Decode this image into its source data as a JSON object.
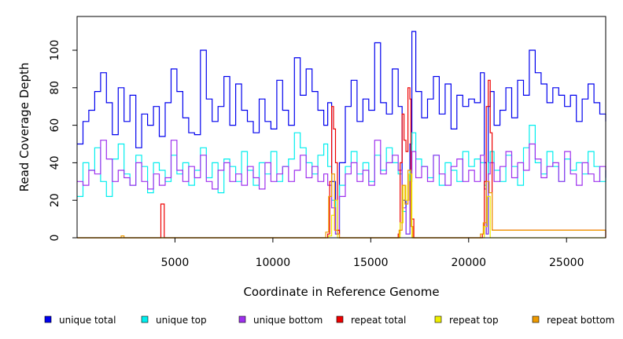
{
  "chart_data": {
    "type": "line",
    "title": "",
    "xlabel": "Coordinate in Reference Genome",
    "ylabel": "Read Coverage Depth",
    "xlim": [
      0,
      27000
    ],
    "ylim": [
      0,
      118
    ],
    "xticks": [
      5000,
      10000,
      15000,
      20000,
      25000
    ],
    "xtick_labels": [
      "5000",
      "10000",
      "15000",
      "20000",
      "25000"
    ],
    "yticks": [
      0,
      20,
      40,
      60,
      80,
      100
    ],
    "ytick_labels": [
      "0",
      "20",
      "40",
      "60",
      "80",
      "100"
    ],
    "grid": false,
    "legend_position": "bottom",
    "series": [
      {
        "name": "unique total",
        "color": "#0000ee",
        "x": [
          0,
          300,
          600,
          900,
          1200,
          1500,
          1800,
          2100,
          2400,
          2700,
          3000,
          3300,
          3600,
          3900,
          4200,
          4500,
          4800,
          5100,
          5400,
          5700,
          6000,
          6300,
          6600,
          6900,
          7200,
          7500,
          7800,
          8100,
          8400,
          8700,
          9000,
          9300,
          9600,
          9900,
          10200,
          10500,
          10800,
          11100,
          11400,
          11700,
          12000,
          12300,
          12600,
          12800,
          13000,
          13200,
          13400,
          13700,
          14000,
          14300,
          14600,
          14900,
          15200,
          15500,
          15800,
          16100,
          16400,
          16600,
          16800,
          17000,
          17100,
          17300,
          17600,
          17900,
          18200,
          18500,
          18800,
          19100,
          19400,
          19700,
          20000,
          20300,
          20600,
          20800,
          20900,
          21000,
          21100,
          21300,
          21600,
          21900,
          22200,
          22500,
          22800,
          23100,
          23400,
          23700,
          24000,
          24300,
          24600,
          24900,
          25200,
          25500,
          25800,
          26100,
          26400,
          26700,
          27000
        ],
        "values": [
          50,
          62,
          68,
          78,
          88,
          72,
          55,
          80,
          62,
          76,
          48,
          66,
          60,
          70,
          54,
          72,
          90,
          78,
          64,
          56,
          55,
          100,
          74,
          62,
          70,
          86,
          60,
          82,
          68,
          62,
          56,
          74,
          62,
          58,
          84,
          68,
          60,
          96,
          76,
          90,
          78,
          68,
          60,
          72,
          30,
          2,
          40,
          70,
          84,
          62,
          74,
          68,
          104,
          72,
          66,
          90,
          70,
          20,
          2,
          50,
          110,
          78,
          64,
          74,
          86,
          66,
          82,
          58,
          76,
          70,
          74,
          72,
          88,
          40,
          2,
          70,
          78,
          60,
          68,
          80,
          64,
          84,
          76,
          100,
          88,
          82,
          72,
          80,
          76,
          70,
          76,
          62,
          74,
          82,
          72,
          66,
          62
        ]
      },
      {
        "name": "unique top",
        "color": "#00eeee",
        "x": [
          0,
          300,
          600,
          900,
          1200,
          1500,
          1800,
          2100,
          2400,
          2700,
          3000,
          3300,
          3600,
          3900,
          4200,
          4500,
          4800,
          5100,
          5400,
          5700,
          6000,
          6300,
          6600,
          6900,
          7200,
          7500,
          7800,
          8100,
          8400,
          8700,
          9000,
          9300,
          9600,
          9900,
          10200,
          10500,
          10800,
          11100,
          11400,
          11700,
          12000,
          12300,
          12600,
          12800,
          13000,
          13200,
          13400,
          13700,
          14000,
          14300,
          14600,
          14900,
          15200,
          15500,
          15800,
          16100,
          16400,
          16600,
          16800,
          17000,
          17100,
          17300,
          17600,
          17900,
          18200,
          18500,
          18800,
          19100,
          19400,
          19700,
          20000,
          20300,
          20600,
          20800,
          20900,
          21000,
          21100,
          21300,
          21600,
          21900,
          22200,
          22500,
          22800,
          23100,
          23400,
          23700,
          24000,
          24300,
          24600,
          24900,
          25200,
          25500,
          25800,
          26100,
          26400,
          26700,
          27000
        ],
        "values": [
          22,
          40,
          36,
          48,
          30,
          22,
          42,
          50,
          34,
          28,
          44,
          38,
          24,
          40,
          36,
          30,
          44,
          34,
          40,
          28,
          36,
          48,
          32,
          40,
          24,
          42,
          38,
          30,
          46,
          36,
          28,
          40,
          34,
          46,
          30,
          38,
          42,
          56,
          48,
          40,
          34,
          44,
          50,
          38,
          20,
          2,
          28,
          38,
          46,
          34,
          40,
          30,
          44,
          36,
          48,
          40,
          34,
          14,
          2,
          36,
          56,
          42,
          38,
          32,
          44,
          28,
          40,
          36,
          30,
          46,
          38,
          42,
          40,
          28,
          2,
          40,
          46,
          36,
          30,
          44,
          38,
          28,
          48,
          60,
          40,
          34,
          46,
          38,
          30,
          42,
          36,
          40,
          34,
          46,
          38,
          30,
          36
        ]
      },
      {
        "name": "unique bottom",
        "color": "#9f30ee",
        "x": [
          0,
          300,
          600,
          900,
          1200,
          1500,
          1800,
          2100,
          2400,
          2700,
          3000,
          3300,
          3600,
          3900,
          4200,
          4500,
          4800,
          5100,
          5400,
          5700,
          6000,
          6300,
          6600,
          6900,
          7200,
          7500,
          7800,
          8100,
          8400,
          8700,
          9000,
          9300,
          9600,
          9900,
          10200,
          10500,
          10800,
          11100,
          11400,
          11700,
          12000,
          12300,
          12600,
          12800,
          13000,
          13200,
          13400,
          13700,
          14000,
          14300,
          14600,
          14900,
          15200,
          15500,
          15800,
          16100,
          16400,
          16600,
          16800,
          17000,
          17100,
          17300,
          17600,
          17900,
          18200,
          18500,
          18800,
          19100,
          19400,
          19700,
          20000,
          20300,
          20600,
          20800,
          20900,
          21000,
          21100,
          21300,
          21600,
          21900,
          22200,
          22500,
          22800,
          23100,
          23400,
          23700,
          24000,
          24300,
          24600,
          24900,
          25200,
          25500,
          25800,
          26100,
          26400,
          26700,
          27000
        ],
        "values": [
          30,
          28,
          36,
          34,
          52,
          42,
          30,
          36,
          32,
          28,
          40,
          30,
          26,
          34,
          28,
          32,
          52,
          36,
          30,
          38,
          32,
          44,
          30,
          26,
          36,
          40,
          30,
          34,
          28,
          38,
          32,
          26,
          40,
          30,
          34,
          38,
          30,
          36,
          44,
          32,
          38,
          30,
          34,
          28,
          16,
          2,
          22,
          34,
          40,
          30,
          36,
          28,
          52,
          34,
          40,
          44,
          36,
          16,
          2,
          30,
          46,
          32,
          38,
          30,
          44,
          34,
          28,
          38,
          42,
          30,
          36,
          30,
          44,
          26,
          2,
          34,
          40,
          30,
          38,
          46,
          32,
          40,
          36,
          50,
          42,
          32,
          38,
          40,
          30,
          46,
          34,
          28,
          40,
          34,
          30,
          38,
          32
        ]
      },
      {
        "name": "repeat total",
        "color": "#ee0000",
        "x": [
          0,
          4250,
          4280,
          4420,
          4450,
          12700,
          12800,
          12900,
          13000,
          13100,
          13200,
          13300,
          13400,
          16350,
          16400,
          16500,
          16600,
          16700,
          16800,
          16900,
          17000,
          17050,
          17200,
          20600,
          20700,
          20800,
          20900,
          21000,
          21100,
          21200,
          27000
        ],
        "values": [
          0,
          0,
          18,
          18,
          0,
          0,
          2,
          30,
          70,
          58,
          40,
          4,
          0,
          0,
          2,
          40,
          66,
          52,
          46,
          80,
          74,
          10,
          0,
          0,
          2,
          30,
          70,
          84,
          56,
          4,
          0
        ]
      },
      {
        "name": "repeat top",
        "color": "#eeee00",
        "x": [
          0,
          12750,
          12850,
          13000,
          13150,
          13300,
          16400,
          16500,
          16650,
          16800,
          16950,
          17100,
          20650,
          20800,
          20950,
          21100,
          27000
        ],
        "values": [
          0,
          0,
          1,
          12,
          20,
          0,
          0,
          8,
          28,
          20,
          34,
          0,
          0,
          6,
          22,
          0,
          0
        ]
      },
      {
        "name": "repeat bottom",
        "color": "#ee9a00",
        "x": [
          0,
          2200,
          2250,
          2350,
          2400,
          12600,
          12700,
          12850,
          13000,
          13150,
          13300,
          13400,
          16350,
          16450,
          16600,
          16750,
          16900,
          17050,
          17150,
          20500,
          20600,
          20750,
          20900,
          21050,
          21200,
          27000
        ],
        "values": [
          0,
          0,
          1,
          1,
          0,
          0,
          3,
          22,
          34,
          4,
          2,
          0,
          0,
          4,
          28,
          18,
          36,
          6,
          0,
          0,
          2,
          8,
          30,
          24,
          4,
          0
        ]
      }
    ]
  },
  "legend": {
    "items": [
      {
        "label": "unique total",
        "color": "#0000ee"
      },
      {
        "label": "unique top",
        "color": "#00eeee"
      },
      {
        "label": "unique bottom",
        "color": "#9f30ee"
      },
      {
        "label": "repeat total",
        "color": "#ee0000"
      },
      {
        "label": "repeat top",
        "color": "#eeee00"
      },
      {
        "label": "repeat bottom",
        "color": "#ee9a00"
      }
    ]
  }
}
